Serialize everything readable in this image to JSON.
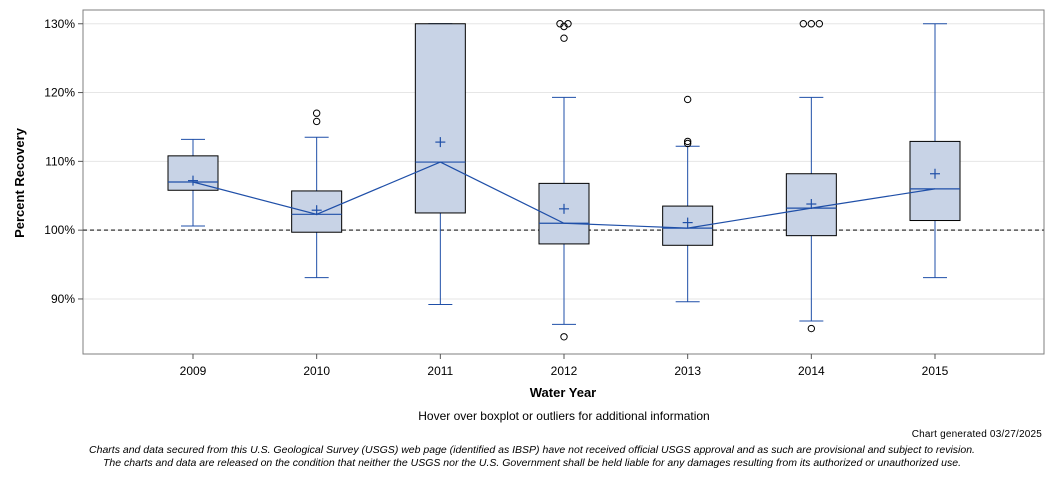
{
  "chart_data": {
    "type": "boxplot",
    "xlabel": "Water Year",
    "ylabel": "Percent Recovery",
    "ylim": [
      82,
      132
    ],
    "yticks": [
      90,
      100,
      110,
      120,
      130
    ],
    "ytick_labels": [
      "90%",
      "100%",
      "110%",
      "120%",
      "130%"
    ],
    "reference_line": 100,
    "categories": [
      "2009",
      "2010",
      "2011",
      "2012",
      "2013",
      "2014",
      "2015"
    ],
    "boxes": [
      {
        "year": "2009",
        "whisker_low": 100.6,
        "q1": 105.8,
        "median": 107.0,
        "q3": 110.8,
        "whisker_high": 113.2,
        "mean": 107.2,
        "outliers": []
      },
      {
        "year": "2010",
        "whisker_low": 93.1,
        "q1": 99.7,
        "median": 102.3,
        "q3": 105.7,
        "whisker_high": 113.5,
        "mean": 102.9,
        "outliers": [
          115.8,
          117.0
        ]
      },
      {
        "year": "2011",
        "whisker_low": 89.2,
        "q1": 102.5,
        "median": 109.9,
        "q3": 130.0,
        "whisker_high": 130.0,
        "mean": 112.8,
        "outliers": []
      },
      {
        "year": "2012",
        "whisker_low": 86.3,
        "q1": 98.0,
        "median": 101.0,
        "q3": 106.8,
        "whisker_high": 119.3,
        "mean": 103.1,
        "outliers": [
          84.5,
          127.9,
          129.6,
          130.0,
          130.0
        ]
      },
      {
        "year": "2013",
        "whisker_low": 89.6,
        "q1": 97.8,
        "median": 100.3,
        "q3": 103.5,
        "whisker_high": 112.2,
        "mean": 101.1,
        "outliers": [
          112.6,
          112.9,
          119.0
        ]
      },
      {
        "year": "2014",
        "whisker_low": 86.8,
        "q1": 99.2,
        "median": 103.2,
        "q3": 108.2,
        "whisker_high": 119.3,
        "mean": 103.8,
        "outliers": [
          85.7,
          130.0,
          130.0,
          130.0
        ]
      },
      {
        "year": "2015",
        "whisker_low": 93.1,
        "q1": 101.4,
        "median": 106.0,
        "q3": 112.9,
        "whisker_high": 130.0,
        "mean": 108.2,
        "outliers": []
      }
    ],
    "colors": {
      "box_fill": "#c8d3e6",
      "line": "#1f4fa8",
      "box_border": "#000000",
      "grid": "#e6e6e6",
      "reference": "#555555"
    }
  },
  "notes": {
    "hover": "Hover over boxplot or outliers for additional information",
    "generated": "Chart generated 03/27/2025",
    "disclaimer_line1": "Charts and data secured from this U.S. Geological Survey (USGS) web page (identified as IBSP) have not received official USGS approval and as such are provisional and subject to revision.",
    "disclaimer_line2": "The charts and data are released on the condition that neither the USGS nor the U.S. Government shall be held liable for any damages resulting from its authorized or unauthorized use."
  }
}
